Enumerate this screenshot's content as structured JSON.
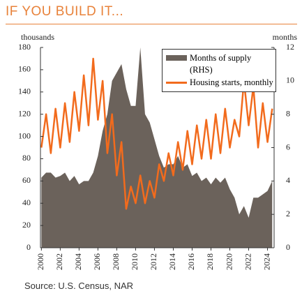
{
  "chart_data": {
    "type": "line",
    "title": "IF YOU BUILD IT...",
    "source": "Source: U.S. Census, NAR",
    "y_label": "thousands",
    "y2_label": "months",
    "x": [
      2000,
      2000.5,
      2001,
      2001.5,
      2002,
      2002.5,
      2003,
      2003.5,
      2004,
      2004.5,
      2005,
      2005.5,
      2006,
      2006.5,
      2007,
      2007.5,
      2008,
      2008.5,
      2009,
      2009.5,
      2010,
      2010.5,
      2011,
      2011.5,
      2012,
      2012.5,
      2013,
      2013.5,
      2014,
      2014.5,
      2015,
      2015.5,
      2016,
      2016.5,
      2017,
      2017.5,
      2018,
      2018.5,
      2019,
      2019.5,
      2020,
      2020.5,
      2021,
      2021.5,
      2022,
      2022.5,
      2023,
      2023.5,
      2024,
      2024.5
    ],
    "series": [
      {
        "name": "Months of supply (RHS)",
        "style": "area",
        "axis": "y2",
        "color": "#6b625b",
        "values": [
          4.2,
          4.5,
          4.5,
          4.2,
          4.3,
          4.5,
          4.0,
          4.3,
          3.8,
          4.0,
          4.0,
          4.5,
          5.5,
          7.0,
          8.0,
          10.0,
          10.5,
          11.0,
          9.5,
          8.5,
          8.5,
          12.0,
          8.0,
          7.5,
          6.5,
          5.5,
          4.8,
          5.0,
          5.0,
          5.5,
          4.8,
          5.0,
          4.3,
          4.5,
          4.0,
          4.2,
          3.8,
          4.2,
          3.9,
          4.2,
          3.5,
          3.0,
          2.0,
          2.5,
          1.8,
          3.0,
          3.0,
          3.2,
          3.4,
          4.0
        ]
      },
      {
        "name": "Housing starts, monthly",
        "style": "line",
        "color": "#f26b1d",
        "values": [
          90,
          120,
          85,
          125,
          90,
          130,
          95,
          140,
          105,
          155,
          110,
          170,
          115,
          150,
          85,
          120,
          65,
          95,
          35,
          55,
          40,
          65,
          40,
          60,
          45,
          75,
          60,
          85,
          65,
          95,
          70,
          105,
          75,
          110,
          80,
          115,
          80,
          120,
          85,
          125,
          90,
          115,
          100,
          150,
          110,
          145,
          90,
          130,
          95,
          125
        ]
      }
    ],
    "xlim": [
      1999.9,
      2024.7
    ],
    "xticks": [
      2000,
      2002,
      2004,
      2006,
      2008,
      2010,
      2012,
      2014,
      2016,
      2018,
      2020,
      2022,
      2024
    ],
    "ylim": [
      0,
      180
    ],
    "yticks": [
      0,
      20,
      40,
      60,
      80,
      100,
      120,
      140,
      160,
      180
    ],
    "y2lim": [
      0,
      12
    ],
    "y2ticks": [
      0,
      2,
      4,
      6,
      8,
      10,
      12
    ],
    "legend": "upper right"
  }
}
